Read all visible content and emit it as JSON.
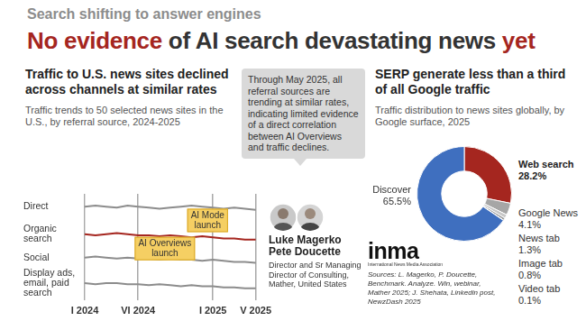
{
  "header": {
    "kicker": "Search shifting to answer engines",
    "title": [
      {
        "text": "No evidence",
        "color": "#a5261f"
      },
      {
        "text": " of AI search devastating news ",
        "color": "#333333"
      },
      {
        "text": "yet",
        "color": "#a5261f"
      }
    ]
  },
  "chart_data": [
    {
      "type": "line",
      "title": "Traffic to U.S. news sites declined across channels at similar rates",
      "subtitle": "Traffic trends to 50 selected news sites in the U.S., by referral source, 2024-2025",
      "categories": [
        "I 2024",
        null,
        null,
        null,
        null,
        "VI 2024",
        null,
        null,
        null,
        null,
        null,
        null,
        "I 2025",
        null,
        null,
        null,
        "V 2025"
      ],
      "series": [
        {
          "name": "Direct",
          "color": "#8c8c8c",
          "values": [
            88,
            89,
            88,
            87,
            89,
            88,
            87,
            86,
            87,
            88,
            89,
            88,
            87,
            86,
            87,
            86,
            85
          ]
        },
        {
          "name": "Organic search",
          "color": "#a5261f",
          "values": [
            62,
            61,
            62,
            63,
            62,
            61,
            61,
            60,
            61,
            60,
            59,
            60,
            59,
            58,
            58,
            57,
            57
          ]
        },
        {
          "name": "Social",
          "color": "#8c8c8c",
          "values": [
            40,
            41,
            40,
            39,
            40,
            39,
            39,
            38,
            39,
            38,
            38,
            37,
            38,
            37,
            36,
            36,
            35
          ]
        },
        {
          "name": "Display ads, email, paid search",
          "color": "#8c8c8c",
          "values": [
            16,
            15,
            16,
            16,
            15,
            15,
            14,
            15,
            14,
            13,
            14,
            13,
            13,
            12,
            12,
            11,
            11
          ]
        }
      ],
      "ylim": [
        0,
        100
      ],
      "tick_labels": "x",
      "grid": "x",
      "annotations": [
        {
          "text": "AI Overviews launch",
          "x": 7.5,
          "y": 48.5
        },
        {
          "text": "AI Mode launch",
          "x": 11.5,
          "y": 75
        }
      ]
    },
    {
      "type": "doughnut",
      "title": "SERP generate less than a third of all Google traffic",
      "subtitle": "Traffic distribution to news sites globally, by Google surface, 2025",
      "categories": [
        "Web search",
        "Google News",
        "News tab",
        "Image tab",
        "Video tab",
        "Discover"
      ],
      "values": [
        28.2,
        4.1,
        1.3,
        0.8,
        0.1,
        65.5
      ],
      "value_labels": [
        "28.2%",
        "4.1%",
        "1.3%",
        "0.8%",
        "0.1%",
        "65.5%"
      ],
      "colors": [
        "#a5261f",
        "#a6a6a6",
        "#c8c8c8",
        "#9a9a9a",
        "#7a7a7a",
        "#3f6fbf"
      ],
      "data_labels": true
    }
  ],
  "quote": "Through May 2025, all referral sources are trending at similar rates, indicating limited evidence of a direct correlation between AI Overviews and traffic declines.",
  "people": {
    "names": [
      "Luke Magerko",
      "Pete Doucette"
    ],
    "role": "Director and Sr Managing Director of Consulting, Mather, United States"
  },
  "logo": {
    "name": "inma",
    "full_name": "International News Media Association"
  },
  "sources": "Sources: L. Magerko, P. Doucette, Benchmark. Analyze. Win, webinar, Mather 2025; J. Shehata, Linkedin post, NewzDash 2025"
}
